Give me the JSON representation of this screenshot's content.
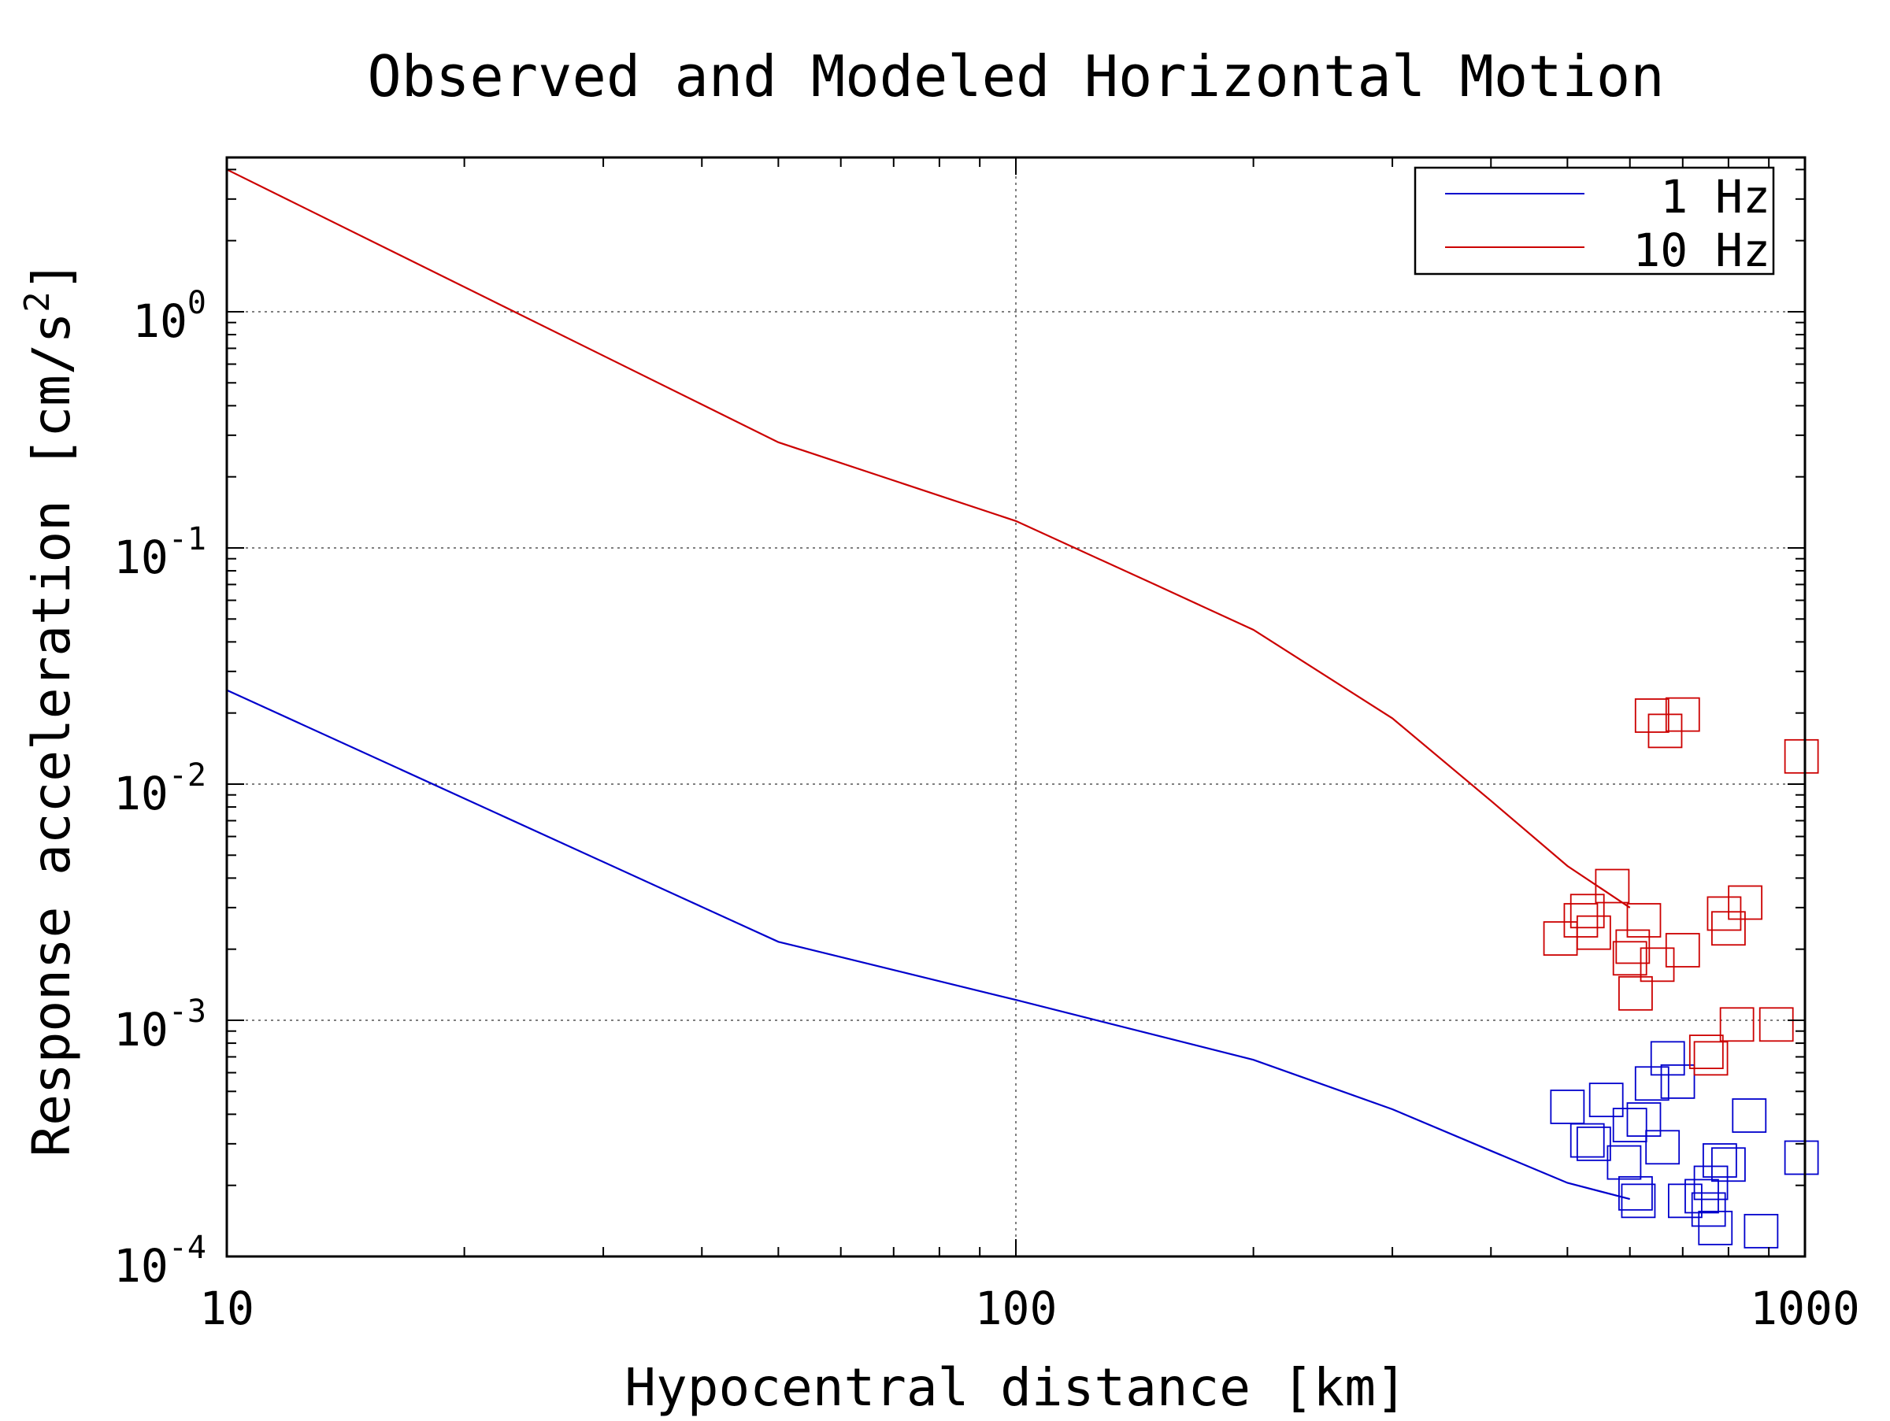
{
  "chart_data": {
    "type": "line",
    "title": "Observed and Modeled Horizontal Motion",
    "xlabel": "Hypocentral distance [km]",
    "ylabel_main": "Response acceleration [cm/s",
    "ylabel_sup": "2",
    "ylabel_tail": "]",
    "x_scale": "log",
    "y_scale": "log",
    "xlim": [
      10,
      1000
    ],
    "ylim": [
      0.0001,
      4.5
    ],
    "grid": true,
    "legend_position": "top-right",
    "x_tick_labels": [
      {
        "value": 10,
        "label": "10"
      },
      {
        "value": 100,
        "label": "100"
      },
      {
        "value": 1000,
        "label": "1000"
      }
    ],
    "y_tick_labels": [
      {
        "value": 1,
        "base": "10",
        "exp": "0"
      },
      {
        "value": 0.1,
        "base": "10",
        "exp": "-1"
      },
      {
        "value": 0.01,
        "base": "10",
        "exp": "-2"
      },
      {
        "value": 0.001,
        "base": "10",
        "exp": "-3"
      },
      {
        "value": 0.0001,
        "base": "10",
        "exp": "-4"
      }
    ],
    "series": [
      {
        "name": "1 Hz",
        "color": "#0000cc",
        "model": [
          [
            10,
            0.025
          ],
          [
            50,
            0.00215
          ],
          [
            100,
            0.00122
          ],
          [
            200,
            0.00068
          ],
          [
            300,
            0.00042
          ],
          [
            400,
            0.00028
          ],
          [
            500,
            0.000205
          ],
          [
            600,
            0.000175
          ]
        ],
        "observed": [
          [
            500,
            0.00043
          ],
          [
            530,
            0.00031
          ],
          [
            540,
            0.0003
          ],
          [
            560,
            0.00046
          ],
          [
            590,
            0.00025
          ],
          [
            600,
            0.00036
          ],
          [
            610,
            0.000185
          ],
          [
            615,
            0.000172
          ],
          [
            625,
            0.00038
          ],
          [
            640,
            0.00054
          ],
          [
            660,
            0.00029
          ],
          [
            670,
            0.00069
          ],
          [
            690,
            0.00055
          ],
          [
            705,
            0.000172
          ],
          [
            740,
            0.00018
          ],
          [
            755,
            0.000158
          ],
          [
            760,
            0.000205
          ],
          [
            770,
            0.000132
          ],
          [
            780,
            0.000255
          ],
          [
            800,
            0.000245
          ],
          [
            850,
            0.000395
          ],
          [
            880,
            0.000128
          ],
          [
            990,
            0.000262
          ]
        ]
      },
      {
        "name": "10 Hz",
        "color": "#cc0000",
        "model": [
          [
            10,
            4.0
          ],
          [
            50,
            0.28
          ],
          [
            100,
            0.13
          ],
          [
            150,
            0.07
          ],
          [
            200,
            0.045
          ],
          [
            300,
            0.019
          ],
          [
            400,
            0.0085
          ],
          [
            500,
            0.0045
          ],
          [
            600,
            0.003
          ]
        ],
        "observed": [
          [
            490,
            0.00222
          ],
          [
            520,
            0.00265
          ],
          [
            530,
            0.0029
          ],
          [
            540,
            0.00235
          ],
          [
            570,
            0.0037
          ],
          [
            600,
            0.00183
          ],
          [
            605,
            0.00205
          ],
          [
            610,
            0.0013
          ],
          [
            625,
            0.00265
          ],
          [
            640,
            0.0195
          ],
          [
            650,
            0.00172
          ],
          [
            665,
            0.0168
          ],
          [
            700,
            0.00198
          ],
          [
            700,
            0.0197
          ],
          [
            750,
            0.000735
          ],
          [
            760,
            0.00069
          ],
          [
            790,
            0.00283
          ],
          [
            800,
            0.00245
          ],
          [
            820,
            0.00096
          ],
          [
            840,
            0.00315
          ],
          [
            920,
            0.00096
          ],
          [
            990,
            0.0131
          ]
        ]
      }
    ]
  }
}
